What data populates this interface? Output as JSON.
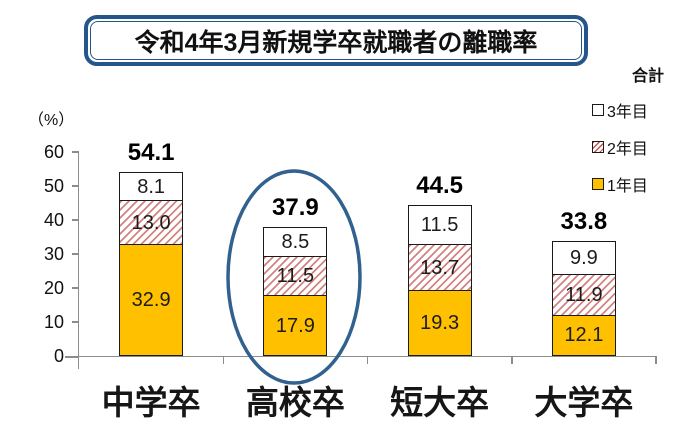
{
  "title": "令和4年3月新規学卒就職者の離職率",
  "legend": {
    "total_label": "合計",
    "items": [
      {
        "label": "3年目",
        "swatch": "white-square"
      },
      {
        "label": "2年目",
        "swatch": "red-hatched-square"
      },
      {
        "label": "1年目",
        "swatch": "yellow-square"
      }
    ]
  },
  "chart_data": {
    "type": "bar",
    "stacked": true,
    "title": "令和4年3月新規学卒就職者の離職率",
    "unit_label": "（%）",
    "categories": [
      "中学卒",
      "高校卒",
      "短大卒",
      "大学卒"
    ],
    "series": [
      {
        "name": "1年目",
        "color": "#FFC000",
        "values": [
          32.9,
          17.9,
          19.3,
          12.1
        ]
      },
      {
        "name": "2年目",
        "color": "red-hatch-on-white",
        "values": [
          13.0,
          11.5,
          13.7,
          11.9
        ]
      },
      {
        "name": "3年目",
        "color": "#FFFFFF",
        "values": [
          8.1,
          8.5,
          11.5,
          9.9
        ]
      }
    ],
    "totals": [
      54.1,
      37.9,
      44.5,
      33.8
    ],
    "ylim": [
      0,
      60
    ],
    "yticks": [
      0,
      10,
      20,
      30,
      40,
      50,
      60
    ],
    "grid": false,
    "legend_position": "top-right",
    "highlight": {
      "category": "高校卒",
      "shape": "ellipse",
      "color": "#31618F"
    }
  },
  "colors": {
    "year1_fill": "#FFC000",
    "hatch_red": "#C4534F",
    "segment_border": "#1A1A1A",
    "axis_gray": "#8C8C8C",
    "title_border_blue": "#24558B",
    "highlight_blue": "#31618F"
  }
}
